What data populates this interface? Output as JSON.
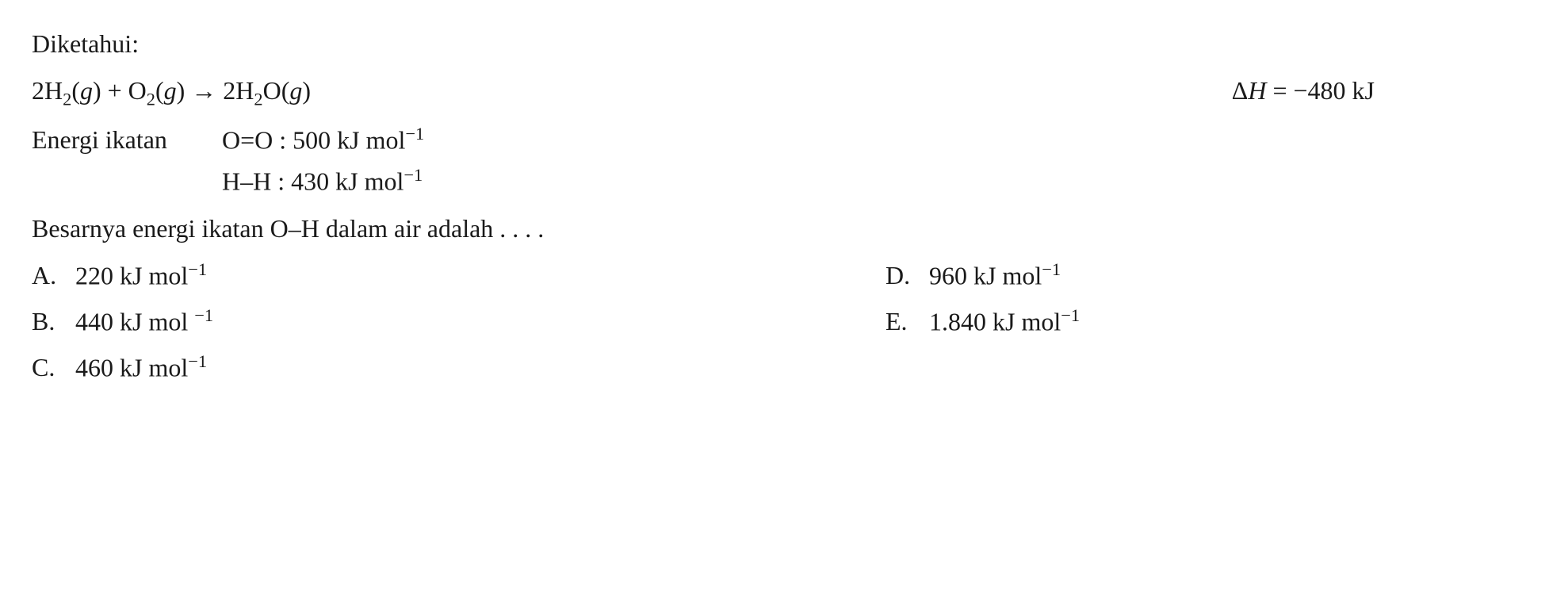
{
  "header": "Diketahui:",
  "equation": {
    "reactants": "2H",
    "r1_sub": "2",
    "r1_phase": "(",
    "r1_phase_letter": "g",
    "r1_close": ")",
    "plus": " + ",
    "r2": "O",
    "r2_sub": "2",
    "r2_phase": "(",
    "r2_phase_letter": "g",
    "r2_close": ")",
    "arrow": " → ",
    "products": "2H",
    "p1_sub": "2",
    "p1_next": "O(",
    "p1_phase_letter": "g",
    "p1_close": ")",
    "delta_h_symbol": "Δ",
    "delta_h_var": "H",
    "delta_h_eq": " = ",
    "delta_h_value": "−480 kJ"
  },
  "bond_energies": {
    "label": "Energi ikatan",
    "row1_bond": "O=O : ",
    "row1_value": "500 kJ mol",
    "row1_exp": "−1",
    "row2_bond": "H–H : ",
    "row2_value": "430 kJ mol",
    "row2_exp": "−1"
  },
  "question": "Besarnya energi ikatan O–H dalam air adalah . . . .",
  "answers": {
    "a": {
      "letter": "A.",
      "value": "220 kJ mol",
      "exp": "−1"
    },
    "b": {
      "letter": "B.",
      "value": "440 kJ mol ",
      "exp": "−1"
    },
    "c": {
      "letter": "C.",
      "value": "460 kJ mol",
      "exp": "−1"
    },
    "d": {
      "letter": "D.",
      "value": "960 kJ mol",
      "exp": "−1"
    },
    "e": {
      "letter": "E.",
      "value": "1.840 kJ mol",
      "exp": "−1"
    }
  },
  "style": {
    "font_family": "Georgia, Times New Roman, serif",
    "font_size_pt": 24,
    "text_color": "#1a1a1a",
    "background_color": "#ffffff",
    "line_height": 1.6
  }
}
